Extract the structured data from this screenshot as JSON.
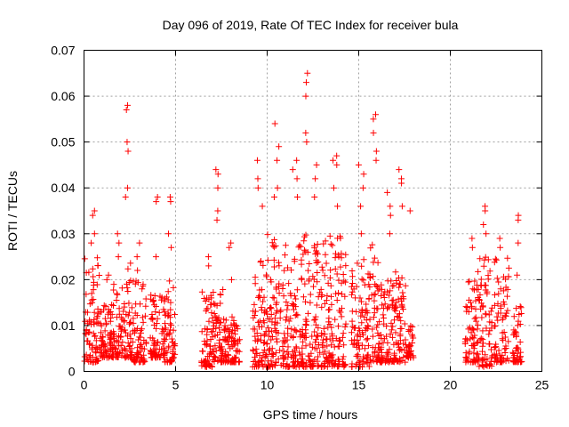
{
  "chart_data": {
    "type": "scatter",
    "title": "Day 096 of 2019, Rate Of TEC Index for receiver bula",
    "xlabel": "GPS time / hours",
    "ylabel": "ROTI / TECUs",
    "xlim": [
      0,
      25
    ],
    "ylim": [
      0,
      0.07
    ],
    "xticks": [
      "0",
      "5",
      "10",
      "15",
      "20",
      "25"
    ],
    "yticks": [
      "0",
      "0.01",
      "0.02",
      "0.03",
      "0.04",
      "0.05",
      "0.06",
      "0.07"
    ],
    "grid": true,
    "legend": "none",
    "marker": "+",
    "color": "#ff0000",
    "clusters": [
      {
        "x_start": 0.0,
        "x_end": 0.9,
        "y_min": 0.002,
        "y_max": 0.025,
        "spikes": [
          0.035,
          0.034,
          0.03,
          0.028
        ]
      },
      {
        "x_start": 0.9,
        "x_end": 1.6,
        "y_min": 0.003,
        "y_max": 0.015,
        "spikes": [
          0.021,
          0.02
        ]
      },
      {
        "x_start": 1.6,
        "x_end": 2.1,
        "y_min": 0.003,
        "y_max": 0.02,
        "spikes": [
          0.03,
          0.028,
          0.025
        ]
      },
      {
        "x_start": 2.1,
        "x_end": 2.6,
        "y_min": 0.003,
        "y_max": 0.025,
        "spikes": [
          0.058,
          0.057,
          0.05,
          0.048,
          0.04,
          0.038
        ]
      },
      {
        "x_start": 2.6,
        "x_end": 3.4,
        "y_min": 0.002,
        "y_max": 0.02,
        "spikes": [
          0.028,
          0.025,
          0.022
        ]
      },
      {
        "x_start": 3.6,
        "x_end": 4.4,
        "y_min": 0.003,
        "y_max": 0.018,
        "spikes": [
          0.038,
          0.037,
          0.025
        ]
      },
      {
        "x_start": 4.4,
        "x_end": 5.0,
        "y_min": 0.002,
        "y_max": 0.02,
        "spikes": [
          0.038,
          0.037,
          0.03,
          0.027
        ]
      },
      {
        "x_start": 6.4,
        "x_end": 7.0,
        "y_min": 0.001,
        "y_max": 0.02,
        "spikes": [
          0.025,
          0.023
        ]
      },
      {
        "x_start": 7.0,
        "x_end": 7.6,
        "y_min": 0.002,
        "y_max": 0.02,
        "spikes": [
          0.044,
          0.043,
          0.04,
          0.035,
          0.033
        ]
      },
      {
        "x_start": 7.6,
        "x_end": 8.5,
        "y_min": 0.002,
        "y_max": 0.012,
        "spikes": [
          0.028,
          0.027,
          0.02
        ]
      },
      {
        "x_start": 9.2,
        "x_end": 10.0,
        "y_min": 0.001,
        "y_max": 0.025,
        "spikes": [
          0.046,
          0.042,
          0.04,
          0.036
        ]
      },
      {
        "x_start": 10.0,
        "x_end": 11.0,
        "y_min": 0.001,
        "y_max": 0.03,
        "spikes": [
          0.054,
          0.049,
          0.046,
          0.04,
          0.038
        ]
      },
      {
        "x_start": 11.0,
        "x_end": 12.0,
        "y_min": 0.001,
        "y_max": 0.028,
        "spikes": [
          0.046,
          0.044,
          0.042,
          0.038
        ]
      },
      {
        "x_start": 12.0,
        "x_end": 12.3,
        "y_min": 0.001,
        "y_max": 0.03,
        "spikes": [
          0.065,
          0.063,
          0.06,
          0.052,
          0.05
        ]
      },
      {
        "x_start": 12.3,
        "x_end": 13.0,
        "y_min": 0.001,
        "y_max": 0.028,
        "spikes": [
          0.045,
          0.042,
          0.038
        ]
      },
      {
        "x_start": 13.0,
        "x_end": 14.3,
        "y_min": 0.001,
        "y_max": 0.03,
        "spikes": [
          0.047,
          0.046,
          0.045,
          0.04,
          0.036
        ]
      },
      {
        "x_start": 14.6,
        "x_end": 15.6,
        "y_min": 0.001,
        "y_max": 0.025,
        "spikes": [
          0.045,
          0.043,
          0.04,
          0.036,
          0.03
        ]
      },
      {
        "x_start": 15.6,
        "x_end": 16.2,
        "y_min": 0.002,
        "y_max": 0.028,
        "spikes": [
          0.056,
          0.055,
          0.052,
          0.048,
          0.046
        ]
      },
      {
        "x_start": 16.2,
        "x_end": 17.0,
        "y_min": 0.002,
        "y_max": 0.02,
        "spikes": [
          0.039,
          0.036,
          0.034,
          0.03
        ]
      },
      {
        "x_start": 17.0,
        "x_end": 17.6,
        "y_min": 0.002,
        "y_max": 0.022,
        "spikes": [
          0.044,
          0.042,
          0.041,
          0.036
        ]
      },
      {
        "x_start": 17.6,
        "x_end": 18.0,
        "y_min": 0.003,
        "y_max": 0.01,
        "spikes": [
          0.035
        ]
      },
      {
        "x_start": 20.8,
        "x_end": 21.5,
        "y_min": 0.002,
        "y_max": 0.02,
        "spikes": [
          0.029,
          0.027
        ]
      },
      {
        "x_start": 21.5,
        "x_end": 22.3,
        "y_min": 0.001,
        "y_max": 0.025,
        "spikes": [
          0.036,
          0.035,
          0.032,
          0.03
        ]
      },
      {
        "x_start": 22.4,
        "x_end": 23.2,
        "y_min": 0.002,
        "y_max": 0.025,
        "spikes": [
          0.029,
          0.027
        ]
      },
      {
        "x_start": 23.4,
        "x_end": 23.9,
        "y_min": 0.002,
        "y_max": 0.015,
        "spikes": [
          0.034,
          0.033,
          0.028,
          0.021
        ]
      }
    ]
  }
}
